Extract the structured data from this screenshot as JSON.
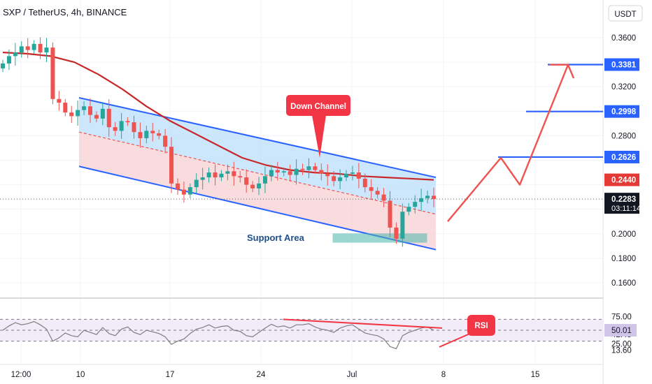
{
  "header": {
    "title": "SXP / TetherUS, 4h, BINANCE"
  },
  "currency_button": "USDT",
  "colors": {
    "background": "#ffffff",
    "grid": "#f0f3fa",
    "candle_up": "#26a69a",
    "candle_down": "#ef5350",
    "channel_line": "#2962ff",
    "channel_fill_top": "#bbdefb",
    "channel_fill_bottom": "#f5d0d3",
    "moving_average": "#c62828",
    "projection": "#ef5350",
    "rsi_line": "#7e7e7e",
    "rsi_band": "#ede7f6",
    "label_blue": "#2962ff",
    "label_red": "#e53935",
    "label_callout": "#f23645",
    "support_box": "#4db6ac",
    "support_text": "#1e4f8c"
  },
  "chart_data": {
    "type": "candlestick",
    "title": "SXP / TetherUS, 4h, BINANCE",
    "y_axis": {
      "ticks": [
        0.36,
        0.34,
        0.32,
        0.3,
        0.28,
        0.26,
        0.24,
        0.22,
        0.2,
        0.18,
        0.16
      ],
      "tick_labels": [
        "0.3600",
        "",
        "0.3200",
        "",
        "0.2800",
        "",
        "",
        "",
        "0.2000",
        "0.1800",
        "0.1600"
      ],
      "range": [
        0.148,
        0.376
      ]
    },
    "x_axis": {
      "ticks": [
        "12:00",
        "10",
        "17",
        "24",
        "Jul",
        "8",
        "15"
      ]
    },
    "price_labels": [
      {
        "value": "0.3381",
        "style": "blue"
      },
      {
        "value": "0.2998",
        "style": "blue"
      },
      {
        "value": "0.2626",
        "style": "blue"
      },
      {
        "value": "0.2440",
        "style": "red"
      },
      {
        "value": "0.2283",
        "style": "dark",
        "countdown": "03:11:14"
      }
    ],
    "horizontal_levels": [
      0.3381,
      0.2998,
      0.2626
    ],
    "current_price": 0.2283,
    "channel": {
      "upper": {
        "start": 0.311,
        "end": 0.246
      },
      "lower": {
        "start": 0.255,
        "end": 0.187
      },
      "mid": {
        "start": 0.283,
        "end": 0.216
      }
    },
    "annotations": {
      "callout": "Down Channel",
      "support": "Support Area",
      "rsi": "RSI"
    },
    "support_zone": [
      0.193,
      0.2
    ],
    "projection_path": [
      0.21,
      0.262,
      0.24,
      0.338,
      0.327
    ],
    "closes": [
      0.339,
      0.345,
      0.348,
      0.353,
      0.35,
      0.355,
      0.348,
      0.352,
      0.31,
      0.307,
      0.299,
      0.296,
      0.301,
      0.304,
      0.297,
      0.294,
      0.302,
      0.287,
      0.284,
      0.292,
      0.291,
      0.283,
      0.278,
      0.284,
      0.282,
      0.28,
      0.271,
      0.241,
      0.236,
      0.232,
      0.238,
      0.244,
      0.246,
      0.25,
      0.246,
      0.249,
      0.251,
      0.247,
      0.246,
      0.24,
      0.237,
      0.241,
      0.247,
      0.252,
      0.25,
      0.251,
      0.248,
      0.253,
      0.252,
      0.255,
      0.252,
      0.249,
      0.247,
      0.243,
      0.246,
      0.249,
      0.25,
      0.245,
      0.238,
      0.235,
      0.232,
      0.227,
      0.205,
      0.196,
      0.218,
      0.222,
      0.226,
      0.229,
      0.231,
      0.2283
    ],
    "moving_average": [
      0.348,
      0.347,
      0.345,
      0.34,
      0.33,
      0.318,
      0.304,
      0.292,
      0.282,
      0.272,
      0.262,
      0.256,
      0.252,
      0.25,
      0.249,
      0.247,
      0.246,
      0.245,
      0.244
    ],
    "rsi": {
      "range": [
        0,
        100
      ],
      "ticks": [
        75.0,
        50.01,
        42.45,
        25.0,
        13.6
      ],
      "tick_labels": [
        "75.00",
        "50.01",
        "42.45",
        "25.00",
        "13.60"
      ],
      "band": [
        30,
        70
      ],
      "values": [
        50,
        58,
        64,
        60,
        62,
        66,
        60,
        52,
        30,
        36,
        45,
        40,
        38,
        50,
        46,
        42,
        55,
        44,
        40,
        52,
        56,
        46,
        42,
        50,
        47,
        44,
        38,
        24,
        30,
        34,
        44,
        52,
        55,
        60,
        54,
        57,
        58,
        50,
        48,
        40,
        38,
        46,
        54,
        61,
        56,
        58,
        54,
        60,
        60,
        62,
        56,
        52,
        50,
        46,
        54,
        58,
        60,
        52,
        45,
        42,
        40,
        34,
        20,
        16,
        40,
        46,
        50,
        54,
        56,
        50
      ],
      "trendline": [
        70,
        54
      ]
    }
  }
}
